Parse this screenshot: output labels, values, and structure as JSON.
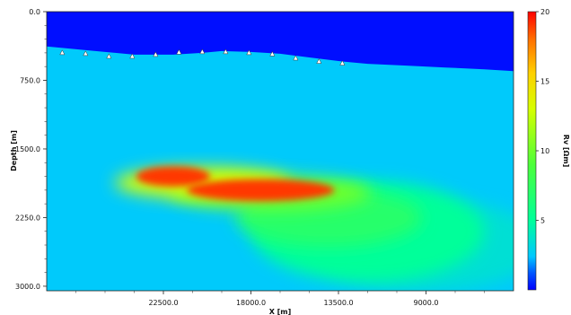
{
  "chart_data": {
    "type": "heatmap",
    "title": "",
    "xlabel": "X [m]",
    "ylabel": "Depth [m]",
    "xlim": [
      28500,
      4500
    ],
    "ylim": [
      0,
      3050
    ],
    "x_ticks": [
      22500,
      18000,
      13500,
      9000
    ],
    "x_tick_labels": [
      "22500.0",
      "18000.0",
      "13500.0",
      "9000.0"
    ],
    "y_ticks": [
      0,
      750,
      1500,
      2250,
      3000
    ],
    "y_tick_labels": [
      "0.0",
      "750.0",
      "1500.0",
      "2250.0",
      "3000.0"
    ],
    "colorbar": {
      "label": "Rv [Ωm]",
      "range": [
        0,
        20
      ],
      "ticks": [
        5,
        10,
        15,
        20
      ],
      "tick_labels": [
        "5",
        "10",
        "15",
        "20"
      ]
    },
    "background_value": 2.5,
    "water_value": 0.2,
    "seafloor_profile": [
      {
        "x": 28500,
        "depth": 380
      },
      {
        "x": 26000,
        "depth": 430
      },
      {
        "x": 24000,
        "depth": 470
      },
      {
        "x": 22000,
        "depth": 470
      },
      {
        "x": 20500,
        "depth": 450
      },
      {
        "x": 19500,
        "depth": 430
      },
      {
        "x": 18000,
        "depth": 440
      },
      {
        "x": 16500,
        "depth": 460
      },
      {
        "x": 15000,
        "depth": 500
      },
      {
        "x": 13500,
        "depth": 540
      },
      {
        "x": 12000,
        "depth": 570
      },
      {
        "x": 10000,
        "depth": 590
      },
      {
        "x": 8000,
        "depth": 610
      },
      {
        "x": 6000,
        "depth": 630
      },
      {
        "x": 4500,
        "depth": 650
      }
    ],
    "receivers": [
      {
        "x": 27700,
        "depth": 450
      },
      {
        "x": 26500,
        "depth": 460
      },
      {
        "x": 25300,
        "depth": 490
      },
      {
        "x": 24100,
        "depth": 490
      },
      {
        "x": 22900,
        "depth": 470
      },
      {
        "x": 21700,
        "depth": 445
      },
      {
        "x": 20500,
        "depth": 440
      },
      {
        "x": 19300,
        "depth": 440
      },
      {
        "x": 18100,
        "depth": 450
      },
      {
        "x": 16900,
        "depth": 465
      },
      {
        "x": 15700,
        "depth": 510
      },
      {
        "x": 14500,
        "depth": 545
      },
      {
        "x": 13300,
        "depth": 565
      }
    ],
    "anomalies": [
      {
        "x": 22000,
        "depth": 1800,
        "rx": 1900,
        "rz": 110,
        "value": 19
      },
      {
        "x": 17500,
        "depth": 1950,
        "rx": 3800,
        "rz": 120,
        "value": 19
      },
      {
        "x": 20500,
        "depth": 1870,
        "rx": 4500,
        "rz": 170,
        "value": 13
      },
      {
        "x": 17000,
        "depth": 1980,
        "rx": 5200,
        "rz": 190,
        "value": 10
      },
      {
        "x": 14000,
        "depth": 2250,
        "rx": 4800,
        "rz": 320,
        "value": 7
      },
      {
        "x": 12000,
        "depth": 2400,
        "rx": 6000,
        "rz": 550,
        "value": 5
      },
      {
        "x": 9000,
        "depth": 2550,
        "rx": 6000,
        "rz": 500,
        "value": 3.5
      }
    ]
  }
}
